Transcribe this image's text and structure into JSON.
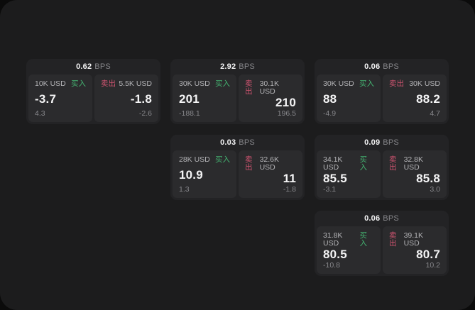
{
  "labels": {
    "bps_unit": "BPS",
    "buy": "买入",
    "sell": "卖出"
  },
  "colors": {
    "outer_bg": "#0b0b0b",
    "screen_bg": "#1c1c1d",
    "card_bg": "#232325",
    "pane_bg": "#2b2b2d",
    "text_primary": "#f4f4f5",
    "text_secondary": "#b3b3b6",
    "text_muted": "#87878b",
    "buy_green": "#44b371",
    "sell_red": "#cf5470"
  },
  "cards": [
    {
      "bps": "0.62",
      "buy": {
        "amount": "10K USD",
        "price": "-3.7",
        "delta": "4.3"
      },
      "sell": {
        "amount": "5.5K USD",
        "price": "-1.8",
        "delta": "-2.6"
      }
    },
    {
      "bps": "2.92",
      "buy": {
        "amount": "30K USD",
        "price": "201",
        "delta": "-188.1"
      },
      "sell": {
        "amount": "30.1K USD",
        "price": "210",
        "delta": "196.5"
      }
    },
    {
      "bps": "0.06",
      "buy": {
        "amount": "30K USD",
        "price": "88",
        "delta": "-4.9"
      },
      "sell": {
        "amount": "30K USD",
        "price": "88.2",
        "delta": "4.7"
      }
    },
    {
      "bps": "0.03",
      "buy": {
        "amount": "28K USD",
        "price": "10.9",
        "delta": "1.3"
      },
      "sell": {
        "amount": "32.6K USD",
        "price": "11",
        "delta": "-1.8"
      }
    },
    {
      "bps": "0.09",
      "buy": {
        "amount": "34.1K USD",
        "price": "85.5",
        "delta": "-3.1"
      },
      "sell": {
        "amount": "32.8K USD",
        "price": "85.8",
        "delta": "3.0"
      }
    },
    {
      "bps": "0.06",
      "buy": {
        "amount": "31.8K USD",
        "price": "80.5",
        "delta": "-10.8"
      },
      "sell": {
        "amount": "39.1K USD",
        "price": "80.7",
        "delta": "10.2"
      }
    }
  ]
}
